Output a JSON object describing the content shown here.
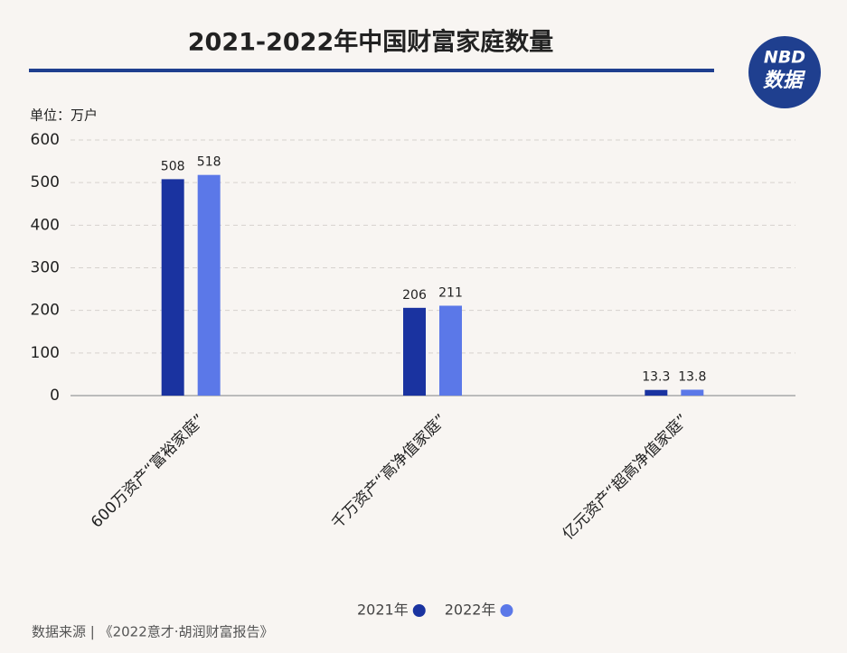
{
  "chart_data": {
    "type": "bar",
    "title": "2021-2022年中国财富家庭数量",
    "logo": {
      "top": "NBD",
      "bottom": "数据"
    },
    "unit": "单位：万户",
    "categories": [
      "600万资产“富裕家庭”",
      "千万资产“高净值家庭”",
      "亿元资产“超高净值家庭”"
    ],
    "series": [
      {
        "name": "2021年",
        "color": "#1a33a0",
        "values": [
          508,
          206,
          13.3
        ]
      },
      {
        "name": "2022年",
        "color": "#5b78e8",
        "values": [
          518,
          211,
          13.8
        ]
      }
    ],
    "ylim": [
      0,
      600
    ],
    "yticks": [
      0,
      100,
      200,
      300,
      400,
      500,
      600
    ],
    "grid": true,
    "source": "数据来源 | 《2022意才·胡润财富报告》"
  }
}
